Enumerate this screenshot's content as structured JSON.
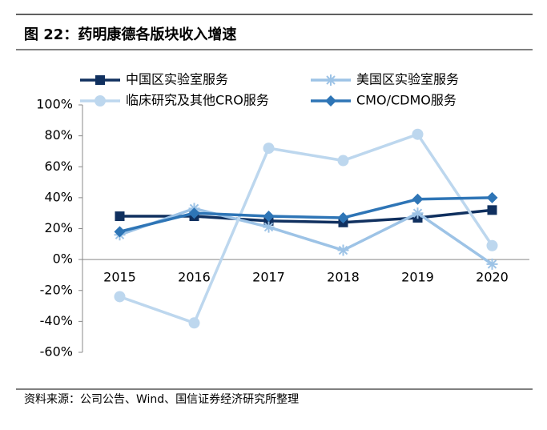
{
  "chart_data": {
    "type": "line",
    "title": "图 22：药明康德各版块收入增速",
    "source": "资料来源：公司公告、Wind、国信证券经济研究所整理",
    "categories": [
      "2015",
      "2016",
      "2017",
      "2018",
      "2019",
      "2020"
    ],
    "series": [
      {
        "name": "中国区实验室服务",
        "color": "#10305f",
        "marker": "square",
        "values": [
          28,
          28,
          25,
          24,
          27,
          32
        ]
      },
      {
        "name": "美国区实验室服务",
        "color": "#9dc3e6",
        "marker": "asterisk",
        "values": [
          16,
          33,
          21,
          6,
          30,
          -3
        ]
      },
      {
        "name": "临床研究及其他CRO服务",
        "color": "#bdd7ee",
        "marker": "circle",
        "values": [
          -24,
          -41,
          72,
          64,
          81,
          9
        ]
      },
      {
        "name": "CMO/CDMO服务",
        "color": "#2e75b6",
        "marker": "diamond",
        "values": [
          18,
          30,
          28,
          27,
          39,
          40
        ]
      }
    ],
    "ylim": [
      -60,
      100
    ],
    "yticks": [
      {
        "value": -60,
        "label": "-60%"
      },
      {
        "value": -40,
        "label": "-40%"
      },
      {
        "value": -20,
        "label": "-20%"
      },
      {
        "value": 0,
        "label": "0%"
      },
      {
        "value": 20,
        "label": "20%"
      },
      {
        "value": 40,
        "label": "40%"
      },
      {
        "value": 60,
        "label": "60%"
      },
      {
        "value": 80,
        "label": "80%"
      },
      {
        "value": 100,
        "label": "100%"
      }
    ],
    "grid": false
  }
}
